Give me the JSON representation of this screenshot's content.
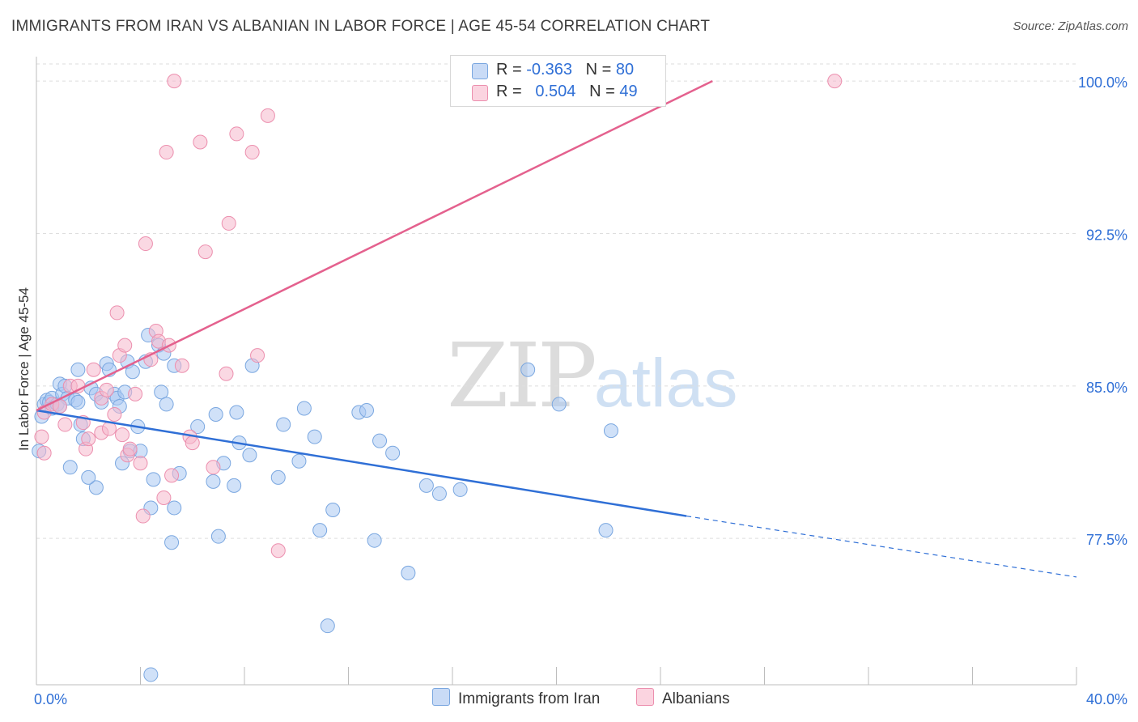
{
  "title": "IMMIGRANTS FROM IRAN VS ALBANIAN IN LABOR FORCE | AGE 45-54 CORRELATION CHART",
  "source": "Source: ZipAtlas.com",
  "watermark": {
    "zip": "ZIP",
    "atlas": "atlas"
  },
  "legend": {
    "rows": [
      {
        "r_label": "R =",
        "r_value": "-0.363",
        "n_label": "N =",
        "n_value": "80",
        "color": "#a9c8f2"
      },
      {
        "r_label": "R =",
        "r_value": "0.504",
        "n_label": "N =",
        "n_value": "49",
        "color": "#f6b8cc"
      }
    ]
  },
  "bottom_legend": [
    {
      "label": "Immigrants from Iran",
      "color": "#a9c8f2"
    },
    {
      "label": "Albanians",
      "color": "#f6b8cc"
    }
  ],
  "chart_data": {
    "type": "scatter",
    "title": "IMMIGRANTS FROM IRAN VS ALBANIAN IN LABOR FORCE | AGE 45-54 CORRELATION CHART",
    "xlabel": "",
    "ylabel": "In Labor Force | Age 45-54",
    "xlim": [
      0,
      40
    ],
    "ylim": [
      70.3,
      101.2
    ],
    "x_tick_labels": [
      "0.0%",
      "40.0%"
    ],
    "y_ticks": [
      77.5,
      85.0,
      92.5,
      100.0
    ],
    "y_tick_labels": [
      "77.5%",
      "85.0%",
      "92.5%",
      "100.0%"
    ],
    "grid": true,
    "legend_position": "top-center",
    "series": [
      {
        "name": "Immigrants from Iran",
        "color": "#a9c8f2",
        "edge": "#7aa7e0",
        "trend": {
          "x": [
            0.0,
            25.0
          ],
          "y": [
            83.8,
            78.6
          ],
          "extend_to_x": 40.0,
          "extend_to_y": 75.6,
          "color": "#2f6fd6"
        },
        "points": [
          [
            0.2,
            83.5
          ],
          [
            0.3,
            84.1
          ],
          [
            0.4,
            84.3
          ],
          [
            0.5,
            84.2
          ],
          [
            0.6,
            84.4
          ],
          [
            0.6,
            83.9
          ],
          [
            0.8,
            84.1
          ],
          [
            0.9,
            85.1
          ],
          [
            1.0,
            84.6
          ],
          [
            1.1,
            85.0
          ],
          [
            1.2,
            84.4
          ],
          [
            1.3,
            81.0
          ],
          [
            1.6,
            85.8
          ],
          [
            1.7,
            83.1
          ],
          [
            1.8,
            82.4
          ],
          [
            2.1,
            84.9
          ],
          [
            2.3,
            84.6
          ],
          [
            2.3,
            80.0
          ],
          [
            2.5,
            84.2
          ],
          [
            2.7,
            86.1
          ],
          [
            2.8,
            85.8
          ],
          [
            3.0,
            84.6
          ],
          [
            3.1,
            84.4
          ],
          [
            3.2,
            84.0
          ],
          [
            3.3,
            81.2
          ],
          [
            3.4,
            84.7
          ],
          [
            3.5,
            86.2
          ],
          [
            3.6,
            81.8
          ],
          [
            3.7,
            85.7
          ],
          [
            3.9,
            83.0
          ],
          [
            4.0,
            81.8
          ],
          [
            4.2,
            86.2
          ],
          [
            4.3,
            87.5
          ],
          [
            4.4,
            79.0
          ],
          [
            4.5,
            80.4
          ],
          [
            4.7,
            87.0
          ],
          [
            4.8,
            84.7
          ],
          [
            4.9,
            86.6
          ],
          [
            5.0,
            84.1
          ],
          [
            5.2,
            77.3
          ],
          [
            5.3,
            86.0
          ],
          [
            5.3,
            79.0
          ],
          [
            5.5,
            80.7
          ],
          [
            6.2,
            83.0
          ],
          [
            6.8,
            80.3
          ],
          [
            6.9,
            83.6
          ],
          [
            7.0,
            77.6
          ],
          [
            7.2,
            81.2
          ],
          [
            7.6,
            80.1
          ],
          [
            7.7,
            83.7
          ],
          [
            7.8,
            82.2
          ],
          [
            8.2,
            81.6
          ],
          [
            8.3,
            86.0
          ],
          [
            9.3,
            80.5
          ],
          [
            9.5,
            83.1
          ],
          [
            10.1,
            81.3
          ],
          [
            10.3,
            83.9
          ],
          [
            10.7,
            82.5
          ],
          [
            10.9,
            77.9
          ],
          [
            11.2,
            73.2
          ],
          [
            11.4,
            78.9
          ],
          [
            12.4,
            83.7
          ],
          [
            12.7,
            83.8
          ],
          [
            13.0,
            77.4
          ],
          [
            13.2,
            82.3
          ],
          [
            13.7,
            81.7
          ],
          [
            14.3,
            75.8
          ],
          [
            15.0,
            80.1
          ],
          [
            15.5,
            79.7
          ],
          [
            16.3,
            79.9
          ],
          [
            18.9,
            85.8
          ],
          [
            20.1,
            84.1
          ],
          [
            21.9,
            77.9
          ],
          [
            22.1,
            82.8
          ],
          [
            4.4,
            70.8
          ],
          [
            1.5,
            84.3
          ],
          [
            0.9,
            84.0
          ],
          [
            1.6,
            84.2
          ],
          [
            0.1,
            81.8
          ],
          [
            2.0,
            80.5
          ]
        ]
      },
      {
        "name": "Albanians",
        "color": "#f6b8cc",
        "edge": "#ec8fae",
        "trend": {
          "x": [
            0.0,
            26.0
          ],
          "y": [
            83.8,
            100.0
          ],
          "color": "#e4618e"
        },
        "points": [
          [
            0.2,
            82.5
          ],
          [
            0.3,
            83.7
          ],
          [
            0.6,
            84.1
          ],
          [
            0.9,
            84.0
          ],
          [
            1.1,
            83.1
          ],
          [
            1.3,
            85.0
          ],
          [
            1.6,
            85.0
          ],
          [
            1.8,
            83.2
          ],
          [
            1.9,
            81.9
          ],
          [
            2.0,
            82.4
          ],
          [
            2.2,
            85.8
          ],
          [
            2.5,
            84.4
          ],
          [
            2.5,
            82.7
          ],
          [
            2.7,
            84.8
          ],
          [
            2.8,
            82.9
          ],
          [
            3.0,
            83.6
          ],
          [
            3.1,
            88.6
          ],
          [
            3.2,
            86.5
          ],
          [
            3.3,
            82.6
          ],
          [
            3.4,
            87.0
          ],
          [
            3.5,
            81.6
          ],
          [
            3.6,
            81.9
          ],
          [
            3.8,
            84.6
          ],
          [
            4.0,
            81.2
          ],
          [
            4.1,
            78.6
          ],
          [
            4.2,
            92.0
          ],
          [
            4.4,
            86.3
          ],
          [
            4.6,
            87.7
          ],
          [
            4.7,
            87.2
          ],
          [
            4.9,
            79.5
          ],
          [
            5.0,
            96.5
          ],
          [
            5.1,
            87.0
          ],
          [
            5.2,
            80.6
          ],
          [
            5.3,
            100.0
          ],
          [
            5.6,
            86.0
          ],
          [
            5.9,
            82.5
          ],
          [
            6.0,
            82.2
          ],
          [
            6.3,
            97.0
          ],
          [
            6.5,
            91.6
          ],
          [
            6.8,
            81.0
          ],
          [
            7.3,
            85.6
          ],
          [
            7.4,
            93.0
          ],
          [
            7.7,
            97.4
          ],
          [
            8.3,
            96.5
          ],
          [
            8.5,
            86.5
          ],
          [
            8.9,
            98.3
          ],
          [
            9.3,
            76.9
          ],
          [
            30.7,
            100.0
          ],
          [
            0.3,
            81.7
          ]
        ]
      }
    ]
  }
}
